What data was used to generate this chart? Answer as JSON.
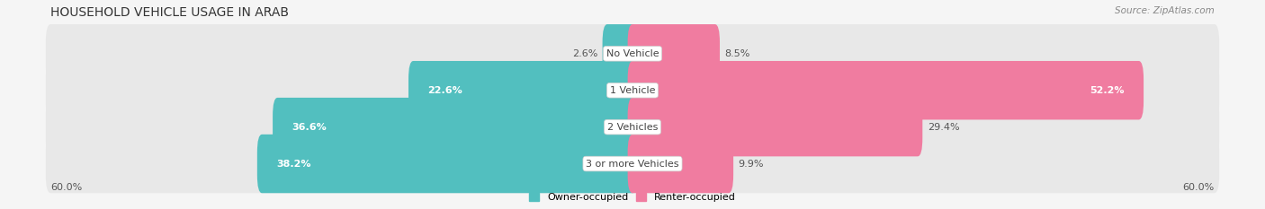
{
  "title": "HOUSEHOLD VEHICLE USAGE IN ARAB",
  "source": "Source: ZipAtlas.com",
  "categories": [
    "No Vehicle",
    "1 Vehicle",
    "2 Vehicles",
    "3 or more Vehicles"
  ],
  "owner_values": [
    2.6,
    22.6,
    36.6,
    38.2
  ],
  "renter_values": [
    8.5,
    52.2,
    29.4,
    9.9
  ],
  "owner_color": "#52bfbf",
  "renter_color": "#f07ca0",
  "background_color": "#f5f5f5",
  "bar_bg_color": "#e8e8e8",
  "axis_limit": 60.0,
  "legend_owner": "Owner-occupied",
  "legend_renter": "Renter-occupied",
  "title_fontsize": 10,
  "source_fontsize": 7.5,
  "label_fontsize": 8,
  "category_fontsize": 8,
  "axis_label_fontsize": 8,
  "owner_label_inside_threshold": 10.0,
  "renter_label_inside_threshold": 50.0
}
